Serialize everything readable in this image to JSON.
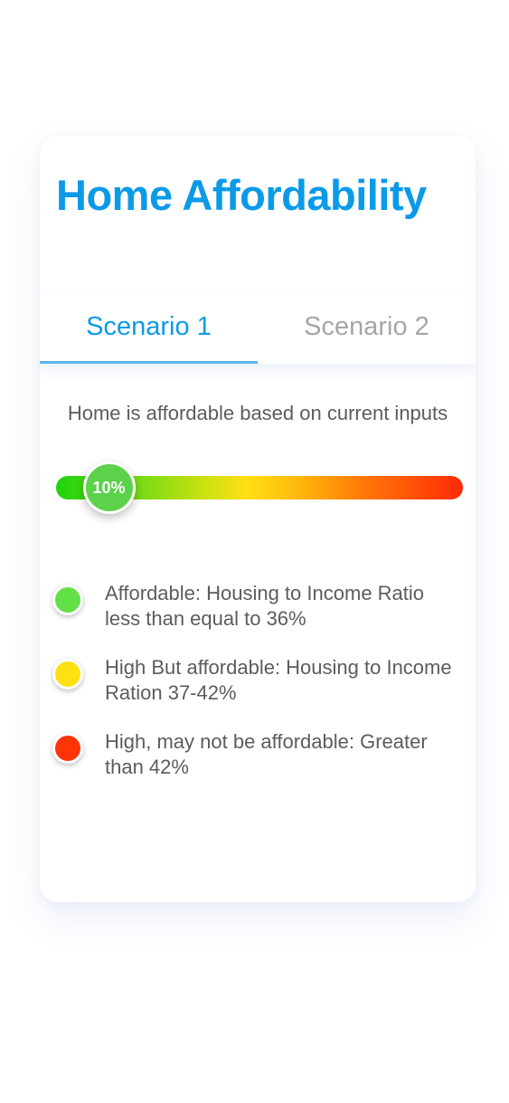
{
  "card": {
    "title": "Home Affordability"
  },
  "tabs": [
    {
      "label": "Scenario 1",
      "active": true
    },
    {
      "label": "Scenario 2",
      "active": false
    }
  ],
  "status": {
    "message": "Home is affordable based on current inputs"
  },
  "meter": {
    "value_label": "10%",
    "value_percent": 10,
    "knob_color": "#5bd24a"
  },
  "legend": [
    {
      "text": "Affordable: Housing to Income Ratio less than equal to 36%",
      "color": "#62e048"
    },
    {
      "text": "High But affordable: Housing to Income Ration 37-42%",
      "color": "#ffe010"
    },
    {
      "text": "High, may not be affordable: Greater than 42%",
      "color": "#ff3308"
    }
  ]
}
